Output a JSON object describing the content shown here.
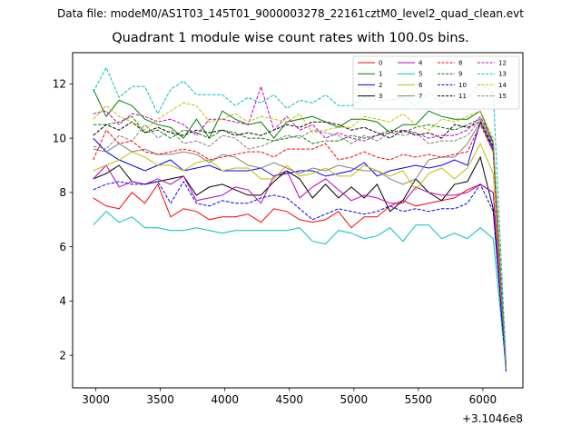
{
  "header": {
    "suptitle": "Data file: modeM0/AS1T03_145T01_9000003278_22161cztM0_level2_quad_clean.evt"
  },
  "chart_data": {
    "type": "line",
    "title": "Quadrant 1 module wise count rates with 100.0s bins.",
    "xlabel": "",
    "ylabel": "",
    "x_offset_label": "+3.1046e8",
    "xlim": [
      2820,
      6310
    ],
    "ylim": [
      0.8,
      13.15
    ],
    "xticks": [
      3000,
      3500,
      4000,
      4500,
      5000,
      5500,
      6000
    ],
    "yticks": [
      2,
      4,
      6,
      8,
      10,
      12
    ],
    "x": [
      2980,
      3080,
      3180,
      3280,
      3380,
      3480,
      3580,
      3680,
      3780,
      3880,
      3980,
      4080,
      4180,
      4280,
      4380,
      4480,
      4580,
      4680,
      4780,
      4880,
      4980,
      5080,
      5180,
      5280,
      5380,
      5480,
      5580,
      5680,
      5780,
      5880,
      5980,
      6080,
      6180
    ],
    "legend_position": "top-right",
    "series": [
      {
        "name": "0",
        "color": "#ff0000",
        "dash": "solid",
        "values": [
          7.8,
          7.5,
          7.4,
          8.0,
          7.6,
          8.3,
          7.1,
          7.4,
          7.3,
          7.0,
          7.1,
          7.1,
          7.2,
          6.9,
          7.4,
          7.3,
          7.0,
          6.9,
          7.0,
          7.3,
          6.7,
          7.1,
          7.1,
          7.5,
          7.7,
          7.5,
          7.6,
          7.7,
          7.8,
          8.1,
          8.3,
          8.0,
          1.6
        ]
      },
      {
        "name": "1",
        "color": "#008000",
        "dash": "solid",
        "values": [
          11.8,
          10.8,
          11.4,
          11.2,
          10.7,
          10.5,
          10.4,
          10.0,
          10.7,
          10.0,
          11.0,
          10.7,
          10.5,
          10.6,
          10.0,
          10.6,
          10.7,
          10.8,
          10.6,
          10.4,
          10.7,
          10.7,
          10.6,
          10.2,
          10.5,
          10.5,
          11.0,
          10.8,
          10.7,
          10.7,
          11.0,
          9.8,
          1.5
        ]
      },
      {
        "name": "2",
        "color": "#0000ff",
        "dash": "solid",
        "values": [
          10.0,
          9.5,
          9.2,
          9.0,
          8.8,
          9.0,
          9.2,
          8.8,
          8.9,
          9.0,
          8.8,
          8.8,
          8.8,
          8.9,
          8.6,
          8.7,
          8.8,
          8.8,
          8.6,
          8.7,
          8.8,
          9.1,
          8.6,
          8.8,
          8.9,
          9.0,
          8.9,
          9.0,
          9.2,
          9.0,
          10.6,
          9.6,
          1.4
        ]
      },
      {
        "name": "3",
        "color": "#000000",
        "dash": "solid",
        "values": [
          8.5,
          8.7,
          9.0,
          8.4,
          8.3,
          8.4,
          8.5,
          8.6,
          7.9,
          8.2,
          8.3,
          8.1,
          7.9,
          7.9,
          8.4,
          8.8,
          8.5,
          7.8,
          8.3,
          7.8,
          8.2,
          7.8,
          8.3,
          7.3,
          7.7,
          8.5,
          8.0,
          7.7,
          8.3,
          8.4,
          9.3,
          7.4,
          1.5
        ]
      },
      {
        "name": "4",
        "color": "#bf00bf",
        "dash": "solid",
        "values": [
          8.5,
          9.0,
          8.2,
          8.4,
          8.3,
          8.5,
          8.3,
          8.6,
          7.7,
          7.8,
          7.9,
          8.2,
          8.1,
          7.6,
          8.6,
          8.8,
          7.8,
          8.2,
          8.5,
          8.1,
          7.7,
          7.9,
          7.8,
          7.6,
          7.6,
          8.2,
          8.0,
          7.9,
          7.9,
          8.0,
          8.3,
          8.0,
          1.5
        ]
      },
      {
        "name": "5",
        "color": "#00bfbf",
        "dash": "solid",
        "values": [
          6.8,
          7.3,
          6.9,
          7.1,
          6.7,
          6.7,
          6.6,
          6.6,
          6.7,
          6.6,
          6.5,
          6.6,
          6.6,
          6.6,
          6.6,
          6.6,
          6.7,
          6.2,
          6.1,
          6.6,
          6.5,
          6.3,
          6.4,
          6.7,
          6.2,
          6.8,
          6.8,
          6.3,
          6.5,
          6.3,
          6.7,
          6.3,
          1.5
        ]
      },
      {
        "name": "6",
        "color": "#bfbf00",
        "dash": "solid",
        "values": [
          8.8,
          9.0,
          9.2,
          9.5,
          9.3,
          9.0,
          9.0,
          8.8,
          9.1,
          9.2,
          8.8,
          8.9,
          8.9,
          8.5,
          8.5,
          9.0,
          8.6,
          8.7,
          8.9,
          8.6,
          8.6,
          9.0,
          8.8,
          8.6,
          8.8,
          8.1,
          8.7,
          8.9,
          8.5,
          8.9,
          9.8,
          8.7,
          1.5
        ]
      },
      {
        "name": "7",
        "color": "#808080",
        "dash": "solid",
        "values": [
          9.6,
          9.5,
          9.8,
          9.5,
          9.6,
          9.4,
          9.4,
          9.5,
          9.4,
          9.1,
          9.4,
          9.3,
          9.0,
          8.9,
          9.1,
          8.9,
          8.7,
          8.9,
          8.8,
          9.0,
          8.9,
          8.8,
          8.8,
          8.5,
          8.3,
          8.5,
          9.2,
          9.3,
          9.3,
          9.8,
          10.6,
          9.5,
          1.5
        ]
      },
      {
        "name": "8",
        "color": "#ff0000",
        "dash": "dashed",
        "values": [
          9.2,
          10.3,
          9.8,
          9.9,
          9.5,
          9.4,
          9.5,
          9.6,
          9.5,
          9.2,
          9.3,
          9.4,
          9.5,
          9.5,
          9.3,
          9.6,
          9.6,
          9.6,
          9.8,
          9.2,
          9.3,
          9.5,
          9.3,
          9.2,
          9.4,
          9.3,
          9.4,
          9.3,
          9.4,
          9.5,
          10.5,
          9.5,
          1.5
        ]
      },
      {
        "name": "9",
        "color": "#008000",
        "dash": "dashed",
        "values": [
          10.5,
          10.5,
          10.6,
          10.8,
          10.2,
          10.3,
          10.0,
          10.3,
          10.2,
          10.0,
          10.3,
          10.2,
          10.0,
          10.0,
          9.9,
          10.0,
          10.1,
          9.8,
          9.9,
          9.9,
          10.1,
          10.0,
          10.1,
          10.3,
          10.2,
          10.4,
          10.5,
          10.4,
          10.3,
          10.5,
          10.7,
          9.8,
          1.5
        ]
      },
      {
        "name": "10",
        "color": "#0000ff",
        "dash": "dashed",
        "values": [
          8.1,
          8.3,
          8.4,
          8.3,
          8.3,
          8.4,
          7.6,
          8.4,
          7.6,
          7.5,
          7.7,
          7.6,
          7.6,
          7.8,
          7.9,
          7.8,
          7.4,
          7.0,
          7.2,
          7.4,
          7.3,
          7.2,
          7.3,
          7.5,
          7.3,
          7.4,
          7.3,
          7.4,
          7.4,
          7.6,
          8.3,
          7.3,
          1.4
        ]
      },
      {
        "name": "11",
        "color": "#000000",
        "dash": "dashed",
        "values": [
          10.1,
          10.5,
          10.3,
          10.6,
          10.2,
          10.4,
          10.2,
          10.1,
          10.3,
          10.2,
          10.3,
          10.1,
          10.2,
          10.1,
          10.3,
          10.5,
          10.4,
          10.6,
          10.6,
          10.5,
          10.3,
          10.4,
          10.2,
          10.0,
          10.3,
          10.1,
          10.2,
          10.0,
          10.5,
          10.4,
          10.6,
          9.7,
          1.5
        ]
      },
      {
        "name": "12",
        "color": "#bf00bf",
        "dash": "dashed",
        "values": [
          10.9,
          11.0,
          10.5,
          10.9,
          10.8,
          10.6,
          10.7,
          10.5,
          10.1,
          10.7,
          10.7,
          10.6,
          10.5,
          11.9,
          10.3,
          10.8,
          10.3,
          10.5,
          10.0,
          10.2,
          10.0,
          9.9,
          10.1,
          10.2,
          10.3,
          10.2,
          10.0,
          10.1,
          10.1,
          10.3,
          10.8,
          9.9,
          1.5
        ]
      },
      {
        "name": "13",
        "color": "#00bfbf",
        "dash": "dashed",
        "values": [
          11.7,
          12.6,
          11.5,
          11.9,
          11.9,
          10.9,
          11.8,
          12.1,
          11.6,
          11.6,
          11.6,
          11.2,
          11.5,
          11.3,
          11.6,
          11.1,
          11.4,
          11.3,
          11.6,
          11.2,
          11.2,
          11.5,
          11.4,
          11.4,
          11.5,
          11.2,
          11.7,
          11.3,
          11.4,
          11.5,
          12.0,
          11.7,
          1.7
        ]
      },
      {
        "name": "14",
        "color": "#bfbf00",
        "dash": "dashed",
        "values": [
          10.7,
          11.2,
          10.8,
          10.6,
          10.3,
          10.7,
          11.0,
          11.3,
          11.2,
          10.6,
          10.7,
          10.9,
          10.6,
          10.8,
          10.7,
          10.6,
          10.9,
          10.2,
          10.3,
          10.4,
          10.4,
          10.8,
          10.7,
          10.6,
          10.9,
          10.5,
          10.3,
          10.7,
          10.6,
          10.8,
          11.0,
          10.0,
          1.5
        ]
      },
      {
        "name": "15",
        "color": "#808080",
        "dash": "dashed",
        "values": [
          9.7,
          9.6,
          10.1,
          9.9,
          10.5,
          10.0,
          10.3,
          9.8,
          9.9,
          9.7,
          10.1,
          10.0,
          9.6,
          9.7,
          9.9,
          10.1,
          10.0,
          10.3,
          10.2,
          10.1,
          9.8,
          10.1,
          9.9,
          10.2,
          10.1,
          10.2,
          9.8,
          9.9,
          9.9,
          10.1,
          10.7,
          9.8,
          1.5
        ]
      }
    ]
  }
}
